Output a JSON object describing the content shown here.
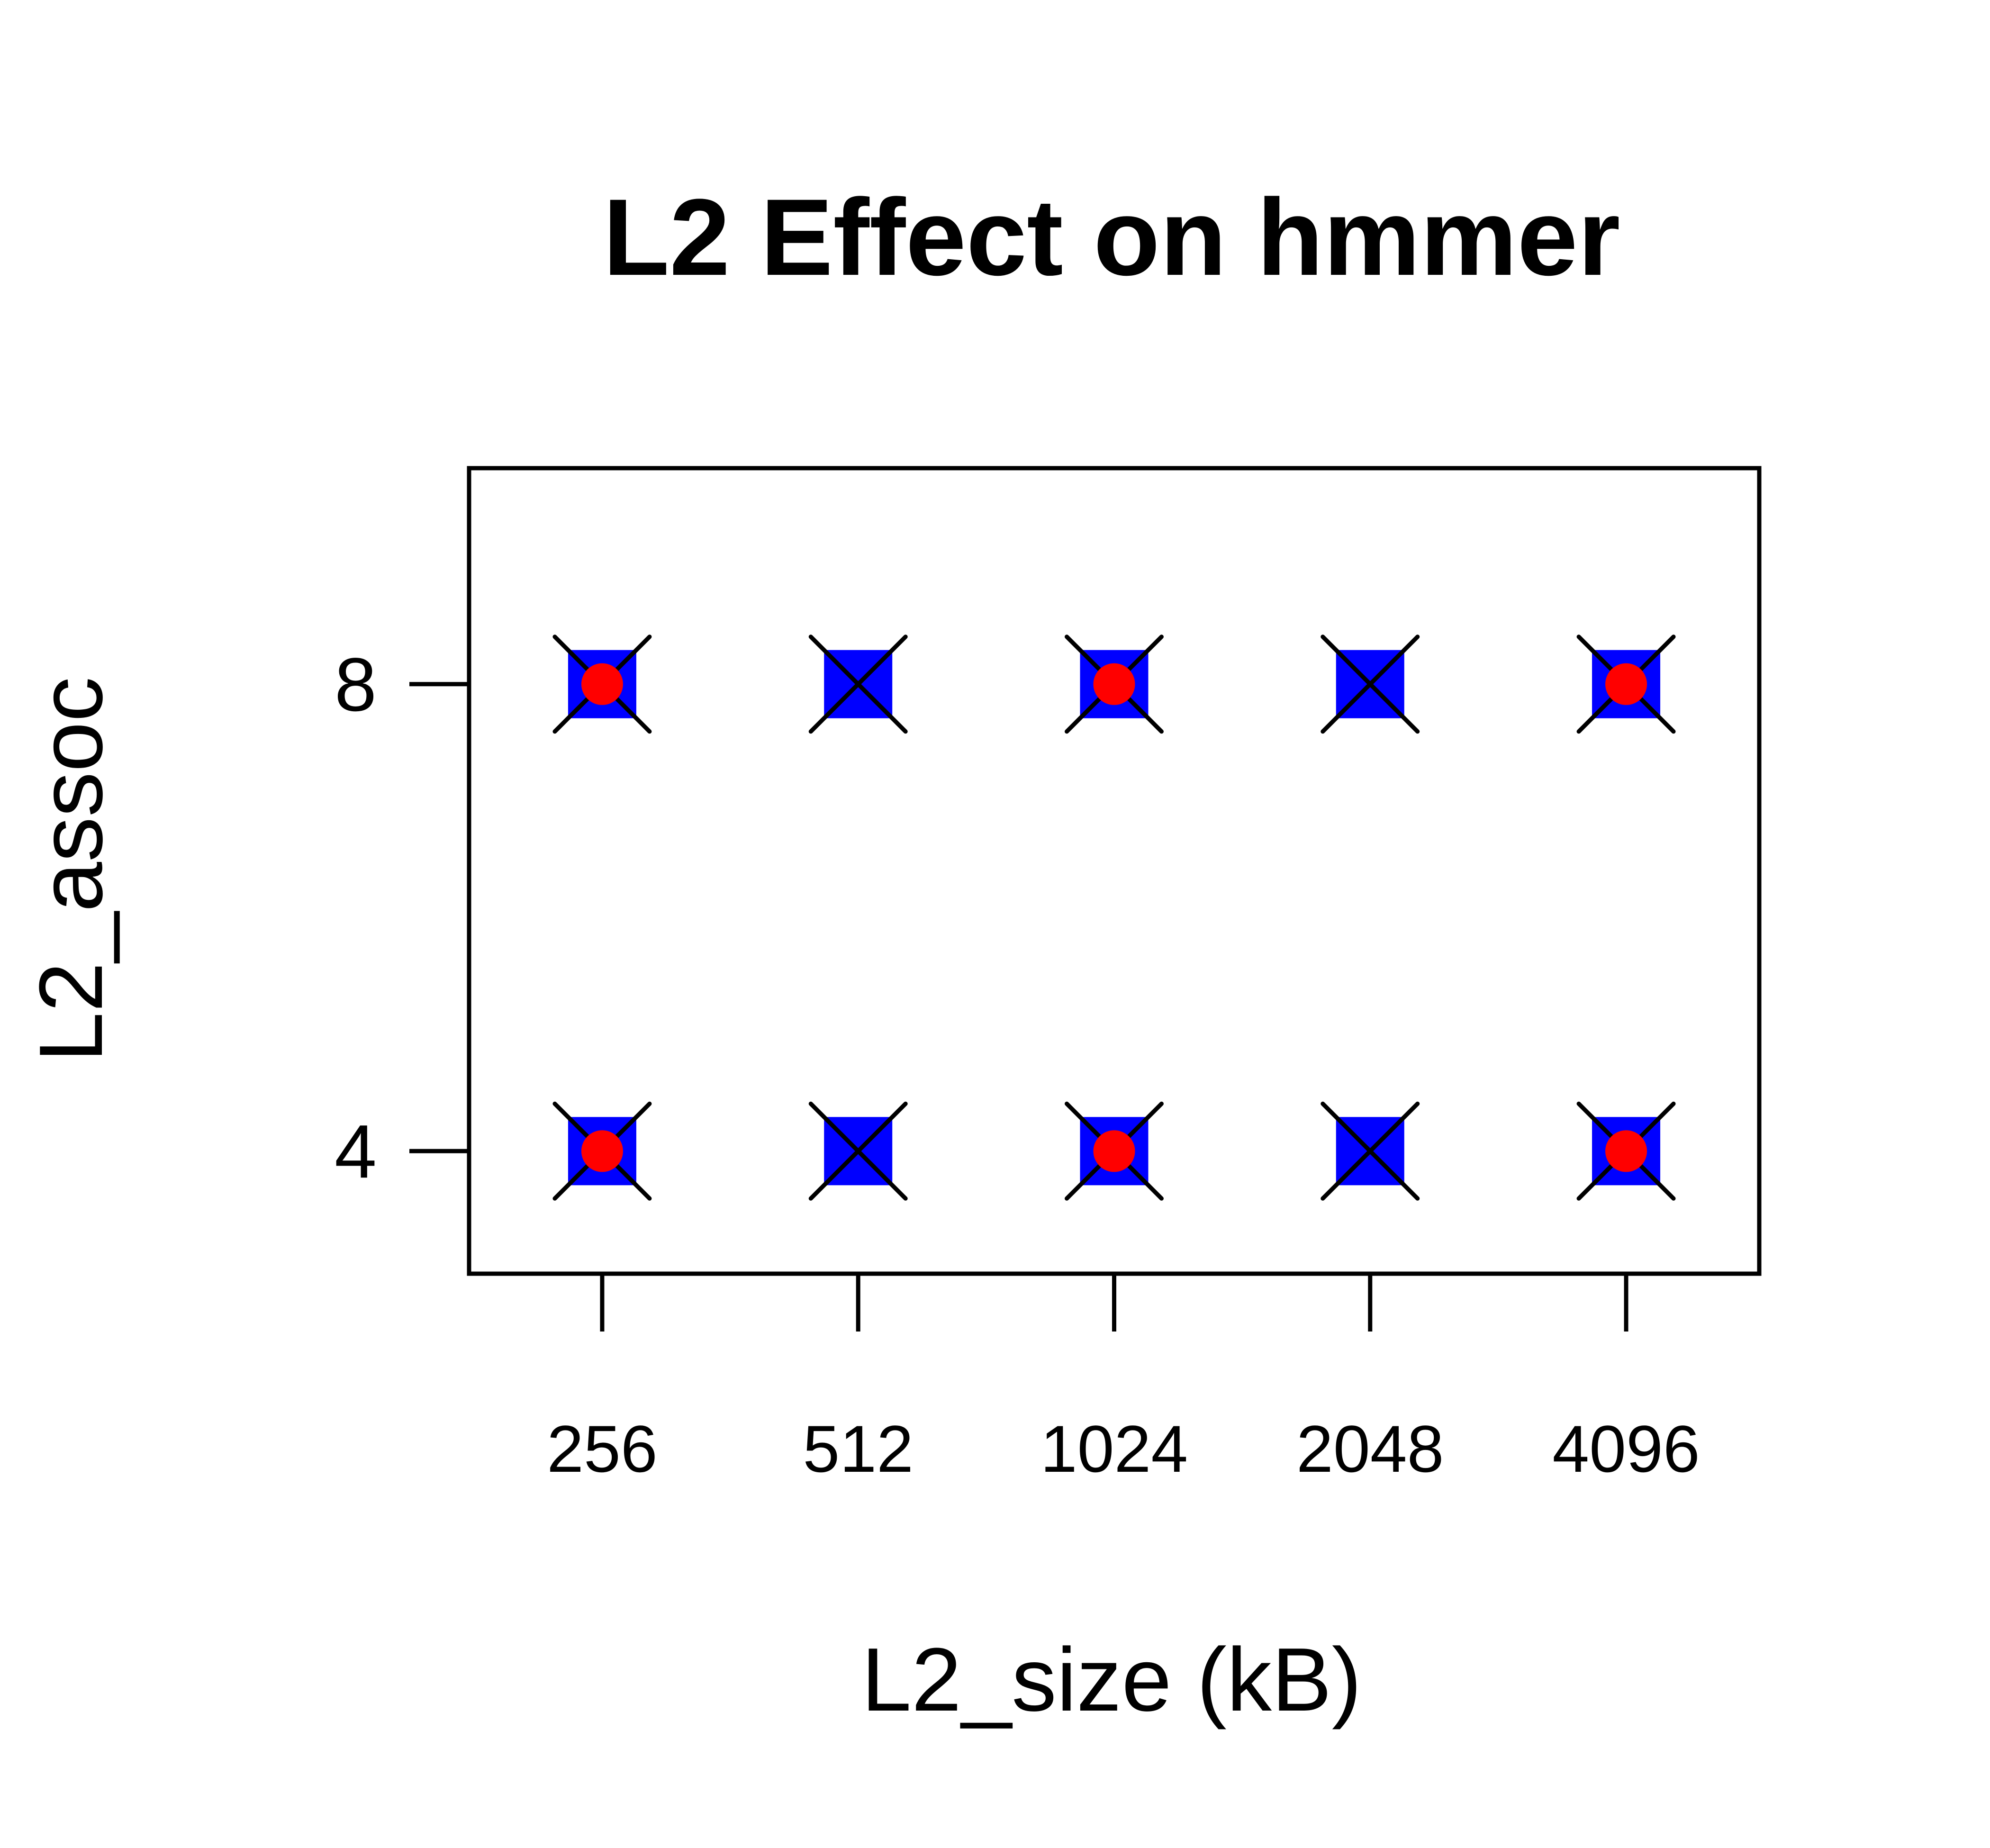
{
  "chart_data": {
    "type": "scatter",
    "title": "L2 Effect on hmmer",
    "xlabel": "L2_size (kB)",
    "ylabel": "L2_assoc",
    "categories": [
      "256",
      "512",
      "1024",
      "2048",
      "4096"
    ],
    "yticks": [
      4,
      8
    ],
    "ylim": [
      2.95,
      9.85
    ],
    "grid": false,
    "legend": "none",
    "colors": {
      "square": "#0000ff",
      "circle": "#ff0000",
      "cross": "#000000"
    },
    "points": [
      {
        "x": "256",
        "y": 8,
        "square": true,
        "cross": true,
        "circle": true
      },
      {
        "x": "512",
        "y": 8,
        "square": true,
        "cross": true,
        "circle": false
      },
      {
        "x": "1024",
        "y": 8,
        "square": true,
        "cross": true,
        "circle": true
      },
      {
        "x": "2048",
        "y": 8,
        "square": true,
        "cross": true,
        "circle": false
      },
      {
        "x": "4096",
        "y": 8,
        "square": true,
        "cross": true,
        "circle": true
      },
      {
        "x": "256",
        "y": 4,
        "square": true,
        "cross": true,
        "circle": true
      },
      {
        "x": "512",
        "y": 4,
        "square": true,
        "cross": true,
        "circle": false
      },
      {
        "x": "1024",
        "y": 4,
        "square": true,
        "cross": true,
        "circle": true
      },
      {
        "x": "2048",
        "y": 4,
        "square": true,
        "cross": true,
        "circle": false
      },
      {
        "x": "4096",
        "y": 4,
        "square": true,
        "cross": true,
        "circle": true
      }
    ]
  }
}
